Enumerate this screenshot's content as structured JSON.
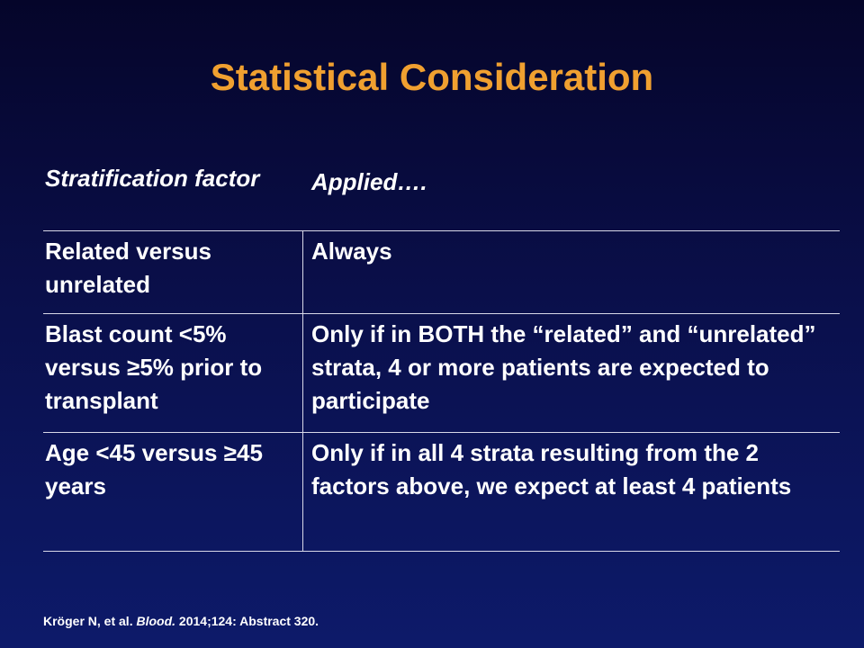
{
  "slide": {
    "title": "Statistical Consideration"
  },
  "table": {
    "headers": [
      "Stratification factor",
      "Applied…."
    ],
    "rows": [
      {
        "factor": "Related versus unrelated",
        "applied": "Always"
      },
      {
        "factor": "Blast count <5% versus ≥5% prior to transplant",
        "applied": "Only if in BOTH the “related” and “unrelated” strata,  4 or more patients are expected to participate"
      },
      {
        "factor": "Age <45 versus ≥45 years",
        "applied": "Only if in all 4 strata resulting from the 2 factors above, we expect at least 4 patients"
      }
    ]
  },
  "citation": {
    "authors": "Kröger N, et al.",
    "journal": "Blood.",
    "details": "2014;124: Abstract 320."
  },
  "colors": {
    "title": "#f0a030",
    "text": "#ffffff",
    "background_top": "#05052a",
    "background_bottom": "#0d1a6a",
    "rule": "#d8d8e8"
  }
}
